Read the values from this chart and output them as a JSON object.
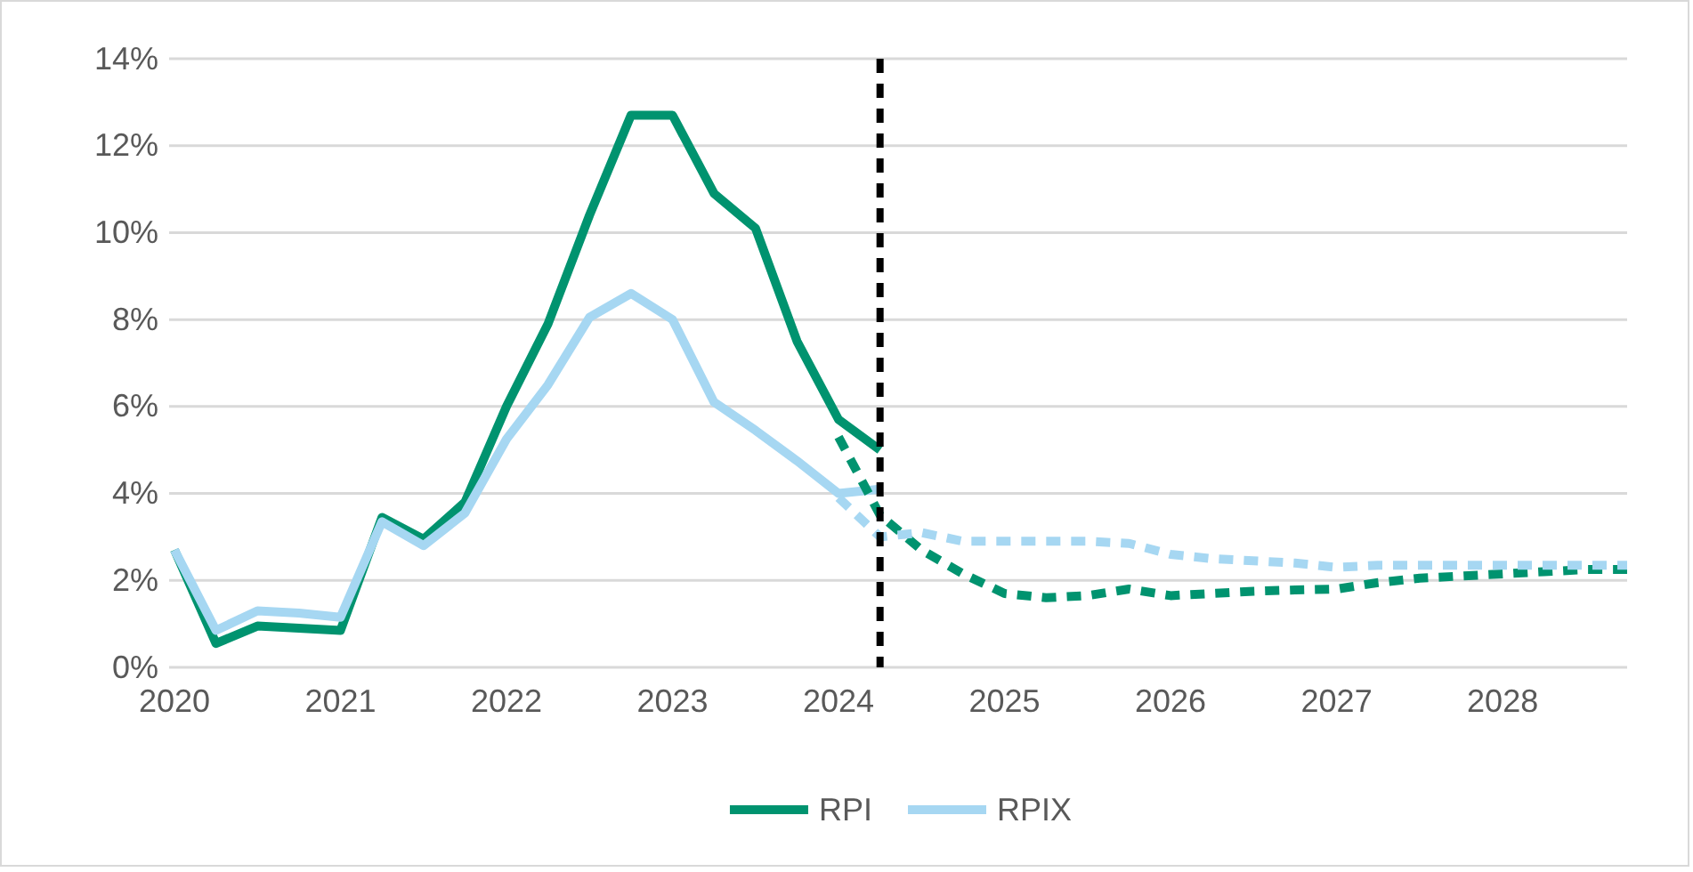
{
  "chart_data": {
    "type": "line",
    "xlim": [
      2020,
      2028.75
    ],
    "xticks": [
      2020,
      2021,
      2022,
      2023,
      2024,
      2025,
      2026,
      2027,
      2028
    ],
    "ylim": [
      0,
      14
    ],
    "yticks": [
      {
        "value": 0,
        "label": "0%"
      },
      {
        "value": 2,
        "label": "2%"
      },
      {
        "value": 4,
        "label": "4%"
      },
      {
        "value": 6,
        "label": "6%"
      },
      {
        "value": 8,
        "label": "8%"
      },
      {
        "value": 10,
        "label": "10%"
      },
      {
        "value": 12,
        "label": "12%"
      },
      {
        "value": 14,
        "label": "14%"
      }
    ],
    "grid": "y",
    "legend": "bottom",
    "ref_lines": [
      {
        "axis": "x",
        "value": 2024.25,
        "color": "#000000",
        "line_style": "dashed"
      }
    ],
    "series": [
      {
        "name": "RPI",
        "color": "#00936f",
        "line_style": "solid",
        "x": [
          2020,
          2020.25,
          2020.5,
          2020.75,
          2021,
          2021.25,
          2021.5,
          2021.75,
          2022,
          2022.25,
          2022.5,
          2022.75,
          2023,
          2023.25,
          2023.5,
          2023.75,
          2024,
          2024.25
        ],
        "values": [
          2.7,
          0.55,
          0.95,
          0.9,
          0.85,
          3.45,
          2.95,
          3.8,
          6.0,
          7.9,
          10.4,
          12.7,
          12.7,
          10.9,
          10.1,
          7.5,
          5.7,
          5.0
        ]
      },
      {
        "name": "RPIX",
        "color": "#a6d7f2",
        "line_style": "solid",
        "x": [
          2020,
          2020.25,
          2020.5,
          2020.75,
          2021,
          2021.25,
          2021.5,
          2021.75,
          2022,
          2022.25,
          2022.5,
          2022.75,
          2023,
          2023.25,
          2023.5,
          2023.75,
          2024,
          2024.25
        ],
        "values": [
          2.7,
          0.85,
          1.3,
          1.25,
          1.15,
          3.35,
          2.8,
          3.55,
          5.25,
          6.5,
          8.05,
          8.6,
          8.0,
          6.1,
          5.45,
          4.75,
          4.0,
          4.1
        ]
      },
      {
        "color": "#00936f",
        "line_style": "dashed",
        "x": [
          2024,
          2024.25,
          2024.5,
          2024.75,
          2025,
          2025.25,
          2025.5,
          2025.75,
          2026,
          2026.25,
          2026.5,
          2026.75,
          2027,
          2027.25,
          2027.5,
          2027.75,
          2028,
          2028.25,
          2028.5,
          2028.75
        ],
        "values": [
          5.3,
          3.5,
          2.7,
          2.15,
          1.7,
          1.6,
          1.65,
          1.8,
          1.65,
          1.7,
          1.75,
          1.78,
          1.8,
          1.95,
          2.05,
          2.1,
          2.15,
          2.2,
          2.25,
          2.25
        ]
      },
      {
        "color": "#a6d7f2",
        "line_style": "dashed",
        "x": [
          2024,
          2024.25,
          2024.5,
          2024.75,
          2025,
          2025.25,
          2025.5,
          2025.75,
          2026,
          2026.25,
          2026.5,
          2026.75,
          2027,
          2027.25,
          2027.5,
          2027.75,
          2028,
          2028.25,
          2028.5,
          2028.75
        ],
        "values": [
          3.9,
          3.0,
          3.1,
          2.9,
          2.9,
          2.9,
          2.9,
          2.85,
          2.6,
          2.5,
          2.45,
          2.4,
          2.3,
          2.35,
          2.35,
          2.35,
          2.35,
          2.35,
          2.35,
          2.35
        ]
      }
    ]
  }
}
